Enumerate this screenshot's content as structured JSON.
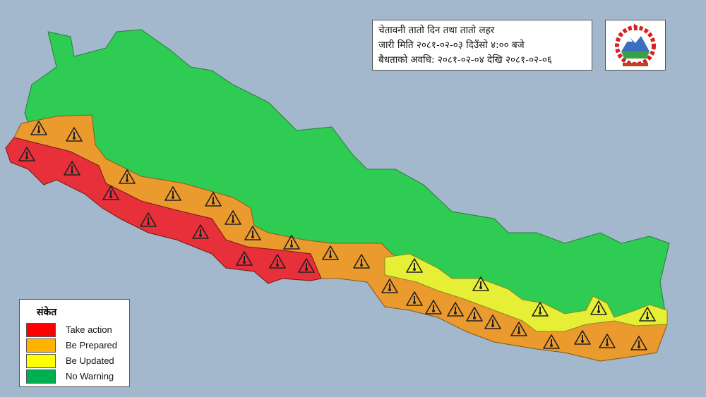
{
  "title": {
    "line1": "चेतावनी तातो दिन तथा तातो लहर",
    "line2": "जारी मिति २०८१-०२-०३ दिउँसो ४:०० बजे",
    "line3": "बैधताको अवधि: २०८१-०२-०४ देखि २०८१-०२-०६"
  },
  "emblem": {
    "icon": "nepal-government-emblem"
  },
  "legend": {
    "title": "संकेत",
    "items": [
      {
        "label": "Take action",
        "color": "#ff0000"
      },
      {
        "label": "Be Prepared",
        "color": "#ffb300"
      },
      {
        "label": "Be Updated",
        "color": "#ffff00"
      },
      {
        "label": "No Warning",
        "color": "#00b050"
      }
    ]
  },
  "map_colors": {
    "take_action": "#e8303a",
    "be_prepared": "#eb9a2e",
    "be_updated": "#e6ef35",
    "no_warning": "#2ecc52",
    "background": "#a3b8cc"
  },
  "icons": {
    "warning": "thermometer-warning-icon"
  }
}
